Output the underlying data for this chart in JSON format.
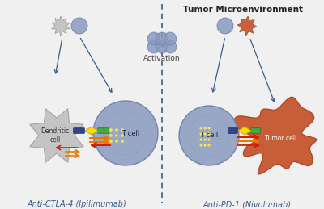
{
  "background_color": "#f0f0f0",
  "title_left": "Anti-CTLA-4 (Ipilimumab)",
  "title_right": "Anti-PD-1 (Nivolumab)",
  "title_center": "Tumor Microenvironment",
  "label_activation": "Activation",
  "label_dendritic": "Dendritic\ncell",
  "label_tcell": "T cell",
  "label_tumor": "Tumor cell",
  "divider_color": "#3a5a8c",
  "text_color": "#3a5a8c",
  "cell_blue": "#8a9bbf",
  "cell_blue_edge": "#6677aa",
  "dendritic_color": "#b8b8b8",
  "tumor_color": "#c45228",
  "tumor_edge": "#a03a18",
  "arrow_red": "#cc2200",
  "arrow_orange": "#ee7700",
  "arrow_blue_dark": "#334488",
  "green_color": "#44aa44",
  "yellow_color": "#ffdd00",
  "dot_yellow": "#ffee44",
  "figsize": [
    4.0,
    2.59
  ],
  "dpi": 100
}
